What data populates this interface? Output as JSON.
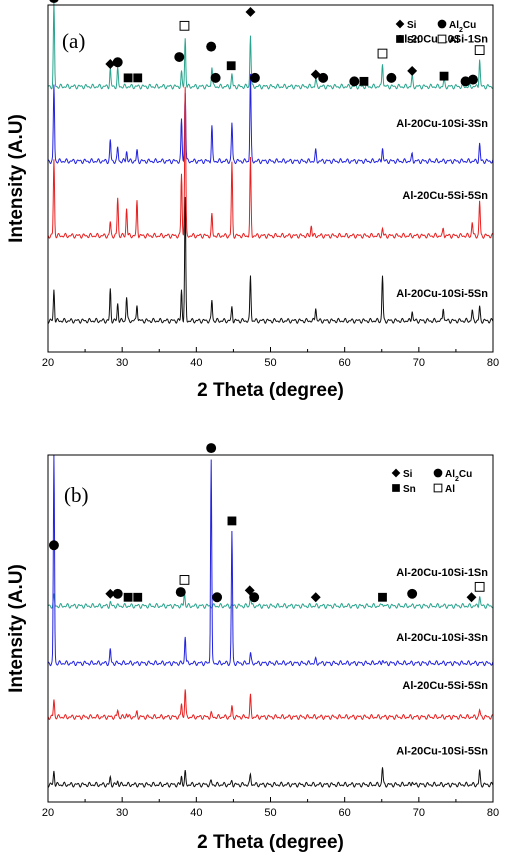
{
  "chart_data": [
    {
      "type": "line",
      "panel_label": "(a)",
      "xlabel": "2 Theta (degree)",
      "ylabel": "Intensity (A.U)",
      "xlim": [
        20,
        80
      ],
      "xticks": [
        "20",
        "30",
        "40",
        "50",
        "60",
        "70",
        "80"
      ],
      "grid": false,
      "legend": {
        "placement": "top-right",
        "entries": [
          {
            "marker": "diamond",
            "label": "Si",
            "sub": ""
          },
          {
            "marker": "circle",
            "label": "Al",
            "sub": "2",
            "suffix": "Cu"
          },
          {
            "marker": "square",
            "label": "Sn",
            "sub": ""
          },
          {
            "marker": "open-square",
            "label": "Al",
            "sub": ""
          }
        ]
      },
      "series": [
        {
          "name": "Al-20Cu-10Si-1Sn",
          "color": "#2aa48e",
          "baseline": 0.765,
          "peaks": [
            [
              20.8,
              0.24
            ],
            [
              28.4,
              0.05
            ],
            [
              29.4,
              0.05
            ],
            [
              38.0,
              0.04
            ],
            [
              38.5,
              0.14
            ],
            [
              42.1,
              0.06
            ],
            [
              44.8,
              0.035
            ],
            [
              47.3,
              0.15
            ],
            [
              56.1,
              0.02
            ],
            [
              65.1,
              0.07
            ],
            [
              69.1,
              0.03
            ],
            [
              73.4,
              0.02
            ],
            [
              78.2,
              0.08
            ]
          ]
        },
        {
          "name": "Al-20Cu-10Si-3Sn",
          "color": "#2323e0",
          "baseline": 0.55,
          "peaks": [
            [
              20.8,
              0.22
            ],
            [
              28.4,
              0.06
            ],
            [
              29.4,
              0.04
            ],
            [
              30.6,
              0.03
            ],
            [
              32.0,
              0.03
            ],
            [
              38.0,
              0.12
            ],
            [
              38.5,
              0.2
            ],
            [
              42.1,
              0.1
            ],
            [
              44.8,
              0.11
            ],
            [
              47.3,
              0.25
            ],
            [
              56.1,
              0.03
            ],
            [
              65.1,
              0.04
            ],
            [
              69.1,
              0.02
            ],
            [
              78.2,
              0.05
            ]
          ]
        },
        {
          "name": "Al-20Cu-5Si-5Sn",
          "color": "#e82020",
          "baseline": 0.335,
          "peaks": [
            [
              20.8,
              0.22
            ],
            [
              28.4,
              0.04
            ],
            [
              29.4,
              0.11
            ],
            [
              30.6,
              0.08
            ],
            [
              32.0,
              0.1
            ],
            [
              38.0,
              0.18
            ],
            [
              38.5,
              0.43
            ],
            [
              42.1,
              0.06
            ],
            [
              44.8,
              0.21
            ],
            [
              47.3,
              0.22
            ],
            [
              55.5,
              0.03
            ],
            [
              65.1,
              0.02
            ],
            [
              73.3,
              0.02
            ],
            [
              77.2,
              0.04
            ],
            [
              78.2,
              0.1
            ]
          ]
        },
        {
          "name": "Al-20Cu-10Si-5Sn",
          "color": "#101010",
          "baseline": 0.09,
          "peaks": [
            [
              20.8,
              0.09
            ],
            [
              28.4,
              0.09
            ],
            [
              29.4,
              0.05
            ],
            [
              30.6,
              0.07
            ],
            [
              32.0,
              0.05
            ],
            [
              38.0,
              0.09
            ],
            [
              38.5,
              0.35
            ],
            [
              42.1,
              0.06
            ],
            [
              44.8,
              0.04
            ],
            [
              47.3,
              0.13
            ],
            [
              56.1,
              0.04
            ],
            [
              65.1,
              0.13
            ],
            [
              69.1,
              0.03
            ],
            [
              73.3,
              0.04
            ],
            [
              77.2,
              0.03
            ],
            [
              78.2,
              0.04
            ]
          ]
        }
      ],
      "annotations": [
        {
          "x": 20.8,
          "y": 1.02,
          "marker": "circle"
        },
        {
          "x": 28.4,
          "y": 0.83,
          "marker": "diamond"
        },
        {
          "x": 29.4,
          "y": 0.835,
          "marker": "circle"
        },
        {
          "x": 30.8,
          "y": 0.79,
          "marker": "square"
        },
        {
          "x": 32.1,
          "y": 0.79,
          "marker": "square"
        },
        {
          "x": 37.7,
          "y": 0.85,
          "marker": "circle"
        },
        {
          "x": 38.4,
          "y": 0.94,
          "marker": "open-square"
        },
        {
          "x": 42.0,
          "y": 0.88,
          "marker": "circle"
        },
        {
          "x": 42.6,
          "y": 0.79,
          "marker": "circle"
        },
        {
          "x": 44.7,
          "y": 0.825,
          "marker": "square"
        },
        {
          "x": 47.3,
          "y": 0.98,
          "marker": "diamond"
        },
        {
          "x": 47.9,
          "y": 0.79,
          "marker": "circle"
        },
        {
          "x": 56.1,
          "y": 0.8,
          "marker": "diamond"
        },
        {
          "x": 57.1,
          "y": 0.79,
          "marker": "circle"
        },
        {
          "x": 61.3,
          "y": 0.78,
          "marker": "circle"
        },
        {
          "x": 62.6,
          "y": 0.78,
          "marker": "square"
        },
        {
          "x": 65.1,
          "y": 0.86,
          "marker": "open-square"
        },
        {
          "x": 66.3,
          "y": 0.79,
          "marker": "circle"
        },
        {
          "x": 69.1,
          "y": 0.81,
          "marker": "diamond"
        },
        {
          "x": 73.4,
          "y": 0.795,
          "marker": "square"
        },
        {
          "x": 76.3,
          "y": 0.78,
          "marker": "circle"
        },
        {
          "x": 77.3,
          "y": 0.785,
          "marker": "circle"
        },
        {
          "x": 78.2,
          "y": 0.87,
          "marker": "open-square"
        }
      ]
    },
    {
      "type": "line",
      "panel_label": "(b)",
      "xlabel": "2 Theta (degree)",
      "ylabel": "Intensity (A.U)",
      "xlim": [
        20,
        80
      ],
      "xticks": [
        "20",
        "30",
        "40",
        "50",
        "60",
        "70",
        "80"
      ],
      "grid": false,
      "legend": {
        "placement": "top-right",
        "entries": [
          {
            "marker": "diamond",
            "label": "Si",
            "sub": ""
          },
          {
            "marker": "circle",
            "label": "Al",
            "sub": "2",
            "suffix": "Cu"
          },
          {
            "marker": "square",
            "label": "Sn",
            "sub": ""
          },
          {
            "marker": "open-square",
            "label": "Al",
            "sub": ""
          }
        ]
      },
      "series": [
        {
          "name": "Al-20Cu-10Si-1Sn",
          "color": "#2aa48e",
          "baseline": 0.565,
          "peaks": [
            [
              20.8,
              0.03
            ],
            [
              28.4,
              0.01
            ],
            [
              38.4,
              0.04
            ],
            [
              47.3,
              0.03
            ],
            [
              65.1,
              0.01
            ],
            [
              78.2,
              0.03
            ]
          ]
        },
        {
          "name": "Al-20Cu-10Si-3Sn",
          "color": "#2323e0",
          "baseline": 0.4,
          "peaks": [
            [
              20.8,
              0.6
            ],
            [
              28.4,
              0.04
            ],
            [
              38.5,
              0.08
            ],
            [
              42.0,
              0.59
            ],
            [
              44.8,
              0.38
            ],
            [
              47.3,
              0.03
            ],
            [
              56.1,
              0.01
            ],
            [
              65.1,
              0.01
            ]
          ]
        },
        {
          "name": "Al-20Cu-5Si-5Sn",
          "color": "#e82020",
          "baseline": 0.245,
          "peaks": [
            [
              20.8,
              0.05
            ],
            [
              29.4,
              0.02
            ],
            [
              30.6,
              0.01
            ],
            [
              32.0,
              0.015
            ],
            [
              38.0,
              0.04
            ],
            [
              38.5,
              0.08
            ],
            [
              42.0,
              0.01
            ],
            [
              44.8,
              0.03
            ],
            [
              47.3,
              0.06
            ],
            [
              78.2,
              0.02
            ]
          ]
        },
        {
          "name": "Al-20Cu-10Si-5Sn",
          "color": "#101010",
          "baseline": 0.05,
          "peaks": [
            [
              20.8,
              0.04
            ],
            [
              28.4,
              0.02
            ],
            [
              29.4,
              0.01
            ],
            [
              38.0,
              0.025
            ],
            [
              38.5,
              0.035
            ],
            [
              42.0,
              0.01
            ],
            [
              44.8,
              0.01
            ],
            [
              47.3,
              0.03
            ],
            [
              65.1,
              0.05
            ],
            [
              69.1,
              0.01
            ],
            [
              78.2,
              0.04
            ]
          ]
        }
      ],
      "annotations": [
        {
          "x": 20.8,
          "y": 0.74,
          "marker": "circle"
        },
        {
          "x": 28.4,
          "y": 0.6,
          "marker": "diamond"
        },
        {
          "x": 29.4,
          "y": 0.6,
          "marker": "circle"
        },
        {
          "x": 30.8,
          "y": 0.59,
          "marker": "square"
        },
        {
          "x": 32.1,
          "y": 0.59,
          "marker": "square"
        },
        {
          "x": 37.9,
          "y": 0.605,
          "marker": "circle"
        },
        {
          "x": 38.4,
          "y": 0.64,
          "marker": "open-square"
        },
        {
          "x": 42.0,
          "y": 1.02,
          "marker": "circle"
        },
        {
          "x": 42.8,
          "y": 0.59,
          "marker": "circle"
        },
        {
          "x": 44.8,
          "y": 0.81,
          "marker": "square"
        },
        {
          "x": 47.2,
          "y": 0.61,
          "marker": "diamond"
        },
        {
          "x": 47.8,
          "y": 0.59,
          "marker": "circle"
        },
        {
          "x": 56.1,
          "y": 0.59,
          "marker": "diamond"
        },
        {
          "x": 65.1,
          "y": 0.59,
          "marker": "square"
        },
        {
          "x": 69.1,
          "y": 0.6,
          "marker": "circle"
        },
        {
          "x": 77.1,
          "y": 0.59,
          "marker": "diamond"
        },
        {
          "x": 78.2,
          "y": 0.62,
          "marker": "open-square"
        }
      ]
    }
  ]
}
